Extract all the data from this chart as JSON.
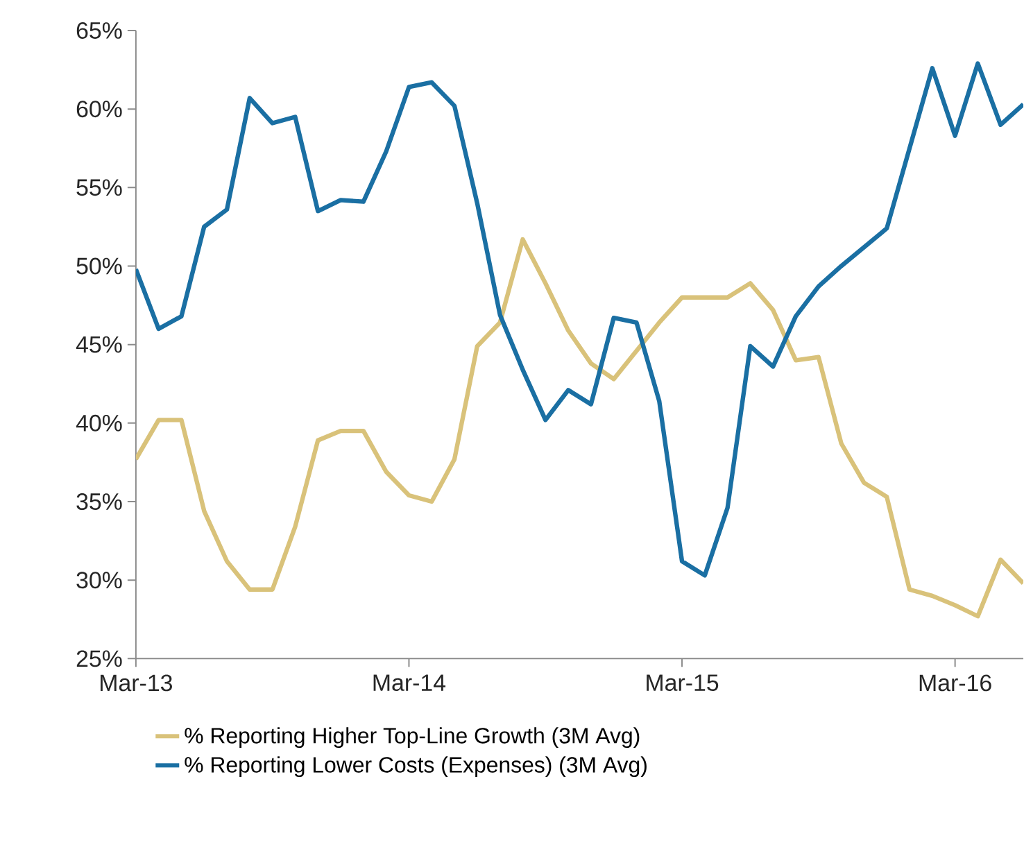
{
  "chart_data": {
    "type": "line",
    "x": [
      "2013-03",
      "2013-04",
      "2013-05",
      "2013-06",
      "2013-07",
      "2013-08",
      "2013-09",
      "2013-10",
      "2013-11",
      "2013-12",
      "2014-01",
      "2014-02",
      "2014-03",
      "2014-04",
      "2014-05",
      "2014-06",
      "2014-07",
      "2014-08",
      "2014-09",
      "2014-10",
      "2014-11",
      "2014-12",
      "2015-01",
      "2015-02",
      "2015-03",
      "2015-04",
      "2015-05",
      "2015-06",
      "2015-07",
      "2015-08",
      "2015-09",
      "2015-10",
      "2015-11",
      "2015-12",
      "2016-01",
      "2016-02",
      "2016-03",
      "2016-04",
      "2016-05",
      "2016-06"
    ],
    "series": [
      {
        "name": "% Reporting Higher Top-Line Growth (3M Avg)",
        "color": "#d9c27a",
        "values": [
          37.7,
          40.2,
          40.2,
          34.4,
          31.2,
          29.4,
          29.4,
          33.4,
          38.9,
          39.5,
          39.5,
          36.9,
          35.4,
          35.0,
          37.7,
          44.9,
          46.4,
          51.7,
          48.9,
          45.9,
          43.8,
          42.8,
          44.6,
          46.4,
          48.0,
          48.0,
          48.0,
          48.9,
          47.2,
          44.0,
          44.2,
          38.7,
          36.2,
          35.3,
          29.4,
          29.0,
          28.4,
          27.7,
          31.3,
          29.8
        ]
      },
      {
        "name": "% Reporting Lower Costs (Expenses) (3M Avg)",
        "color": "#1a6fa3",
        "values": [
          49.8,
          46.0,
          46.8,
          52.5,
          53.6,
          60.7,
          59.1,
          59.5,
          53.5,
          54.2,
          54.1,
          57.3,
          61.4,
          61.7,
          60.2,
          54.0,
          46.9,
          43.4,
          40.2,
          42.1,
          41.2,
          46.7,
          46.4,
          41.4,
          31.2,
          30.3,
          34.6,
          44.9,
          43.6,
          46.8,
          48.7,
          50.0,
          51.2,
          52.4,
          57.5,
          62.6,
          58.3,
          62.9,
          59.0,
          60.3
        ]
      }
    ],
    "xlim": [
      "2013-03",
      "2016-06"
    ],
    "xticks": [
      {
        "value": "2013-03",
        "label": "Mar-13"
      },
      {
        "value": "2014-03",
        "label": "Mar-14"
      },
      {
        "value": "2015-03",
        "label": "Mar-15"
      },
      {
        "value": "2016-03",
        "label": "Mar-16"
      }
    ],
    "ylim": [
      25,
      65
    ],
    "yticks": [
      {
        "value": 25,
        "label": "25%"
      },
      {
        "value": 30,
        "label": "30%"
      },
      {
        "value": 35,
        "label": "35%"
      },
      {
        "value": 40,
        "label": "40%"
      },
      {
        "value": 45,
        "label": "45%"
      },
      {
        "value": 50,
        "label": "50%"
      },
      {
        "value": 55,
        "label": "55%"
      },
      {
        "value": 60,
        "label": "60%"
      },
      {
        "value": 65,
        "label": "65%"
      }
    ],
    "legend": "bottom",
    "grid": false,
    "marker": "none",
    "line_style": "solid"
  }
}
